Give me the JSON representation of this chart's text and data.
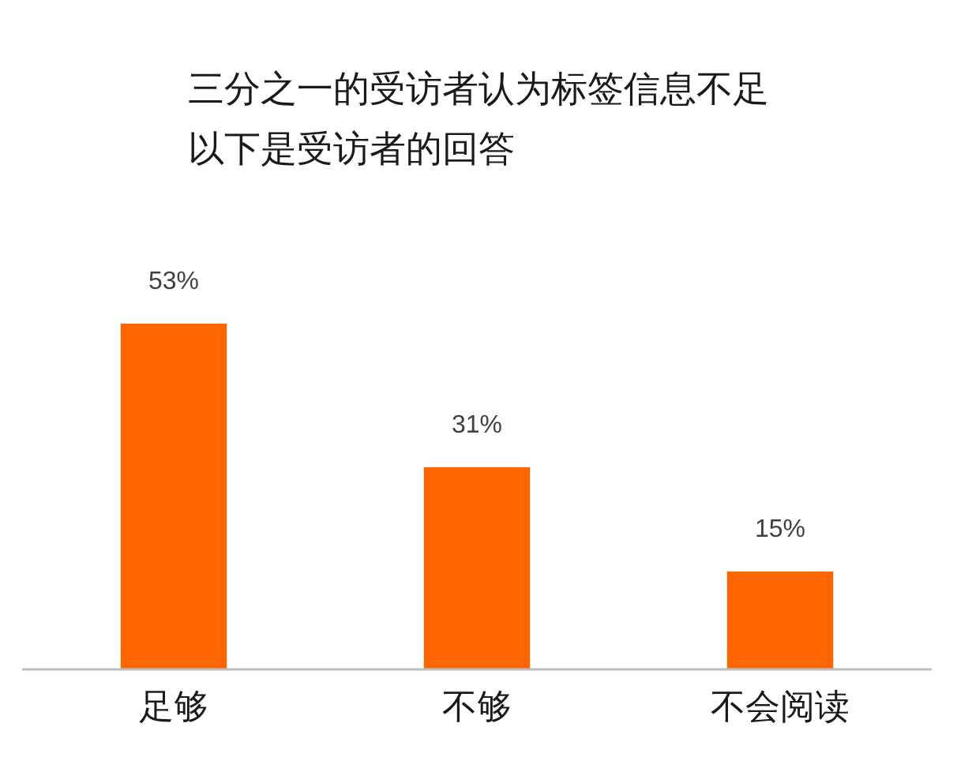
{
  "chart_data": {
    "type": "bar",
    "title": "三分之一的受访者认为标签信息不足",
    "subtitle": "以下是受访者的回答",
    "categories": [
      "足够",
      "不够",
      "不会阅读"
    ],
    "values": [
      53,
      31,
      15
    ],
    "color": "#ff6600",
    "value_labels": [
      "53%",
      "31%",
      "15%"
    ],
    "tick_labels": "x"
  }
}
